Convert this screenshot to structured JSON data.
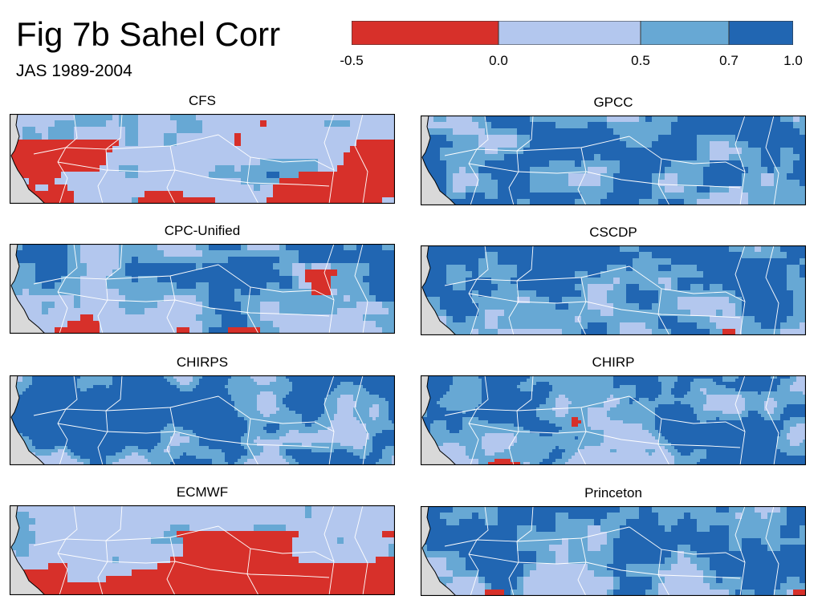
{
  "figure": {
    "title": "Fig 7b Sahel Corr",
    "subtitle": "JAS 1989-2004"
  },
  "colorbar": {
    "ticks": [
      "-0.5",
      "0.0",
      "0.5",
      "0.7",
      "1.0"
    ],
    "bins": [
      {
        "from": -0.5,
        "to": 0.0,
        "color": "#d7302a"
      },
      {
        "from": 0.0,
        "to": 0.5,
        "color": "#b3c7ee"
      },
      {
        "from": 0.5,
        "to": 0.7,
        "color": "#67a8d4"
      },
      {
        "from": 0.7,
        "to": 1.0,
        "color": "#2166b2"
      }
    ]
  },
  "colors": {
    "land_mask": "#d9d9d9",
    "borders": "#ffffff",
    "frame": "#000000"
  },
  "panels": [
    {
      "name": "CFS",
      "base": 0.38,
      "red": 0.3,
      "resolution": "coarse",
      "seed": 11
    },
    {
      "name": "GPCC",
      "base": 0.74,
      "red": 0.05,
      "resolution": "coarse",
      "seed": 23
    },
    {
      "name": "CPC-Unified",
      "base": 0.6,
      "red": 0.1,
      "resolution": "coarse",
      "seed": 37
    },
    {
      "name": "CSCDP",
      "base": 0.76,
      "red": 0.06,
      "resolution": "coarse",
      "seed": 41
    },
    {
      "name": "CHIRPS",
      "base": 0.74,
      "red": 0.06,
      "resolution": "fine",
      "seed": 53
    },
    {
      "name": "CHIRP",
      "base": 0.71,
      "red": 0.08,
      "resolution": "fine",
      "seed": 67
    },
    {
      "name": "ECMWF",
      "base": 0.3,
      "red": 0.32,
      "resolution": "coarse",
      "seed": 71
    },
    {
      "name": "Princeton",
      "base": 0.72,
      "red": 0.04,
      "resolution": "coarse",
      "seed": 83
    }
  ]
}
